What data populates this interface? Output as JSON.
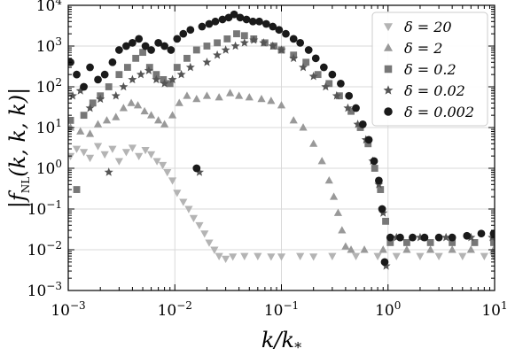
{
  "chart_data": {
    "type": "scatter",
    "xscale": "log",
    "yscale": "log",
    "xlim": [
      0.001,
      10
    ],
    "ylim": [
      0.001,
      10000
    ],
    "xlabel": "k/k*",
    "ylabel": "|f_NL(k, k, k)|",
    "grid": true,
    "legend_position": "top-right",
    "x_ticks": [
      0.001,
      0.01,
      0.1,
      1,
      10
    ],
    "x_tick_labels": [
      "10^-3",
      "10^-2",
      "10^-1",
      "10^0",
      "10^1"
    ],
    "y_ticks": [
      0.001,
      0.01,
      0.1,
      1,
      10,
      100,
      1000,
      10000
    ],
    "y_tick_labels": [
      "10^-3",
      "10^-2",
      "10^-1",
      "10^0",
      "10^1",
      "10^2",
      "10^3",
      "10^4"
    ],
    "series": [
      {
        "name": "δ = 20",
        "marker": "triangle-down",
        "color": "#b4b4b4",
        "points": [
          [
            0.00105,
            2.0
          ],
          [
            0.0012,
            3.0
          ],
          [
            0.0014,
            2.5
          ],
          [
            0.0016,
            1.8
          ],
          [
            0.0019,
            3.5
          ],
          [
            0.0022,
            2.2
          ],
          [
            0.0026,
            3.0
          ],
          [
            0.003,
            1.5
          ],
          [
            0.0035,
            2.5
          ],
          [
            0.004,
            3.2
          ],
          [
            0.0046,
            2.0
          ],
          [
            0.0053,
            2.8
          ],
          [
            0.006,
            2.2
          ],
          [
            0.0068,
            1.5
          ],
          [
            0.0077,
            1.2
          ],
          [
            0.0085,
            0.8
          ],
          [
            0.0095,
            0.5
          ],
          [
            0.0105,
            0.25
          ],
          [
            0.012,
            0.15
          ],
          [
            0.0135,
            0.1
          ],
          [
            0.015,
            0.06
          ],
          [
            0.017,
            0.04
          ],
          [
            0.019,
            0.025
          ],
          [
            0.021,
            0.015
          ],
          [
            0.0235,
            0.01
          ],
          [
            0.026,
            0.007
          ],
          [
            0.03,
            0.006
          ],
          [
            0.035,
            0.0068
          ],
          [
            0.045,
            0.007
          ],
          [
            0.06,
            0.007
          ],
          [
            0.08,
            0.0068
          ],
          [
            0.1,
            0.0068
          ],
          [
            0.15,
            0.007
          ],
          [
            0.2,
            0.0068
          ],
          [
            0.3,
            0.007
          ],
          [
            0.5,
            0.007
          ],
          [
            0.8,
            0.007
          ],
          [
            1.2,
            0.007
          ],
          [
            2.0,
            0.007
          ],
          [
            3.0,
            0.007
          ],
          [
            5.0,
            0.007
          ],
          [
            8.0,
            0.007
          ],
          [
            9.8,
            0.007
          ]
        ]
      },
      {
        "name": "δ = 2",
        "marker": "triangle-up",
        "color": "#999999",
        "points": [
          [
            0.00105,
            10.0
          ],
          [
            0.0013,
            8.0
          ],
          [
            0.0016,
            7.0
          ],
          [
            0.0019,
            12.0
          ],
          [
            0.0023,
            15.0
          ],
          [
            0.0028,
            18.0
          ],
          [
            0.0033,
            30.0
          ],
          [
            0.0039,
            40.0
          ],
          [
            0.0045,
            35.0
          ],
          [
            0.0052,
            25.0
          ],
          [
            0.006,
            20.0
          ],
          [
            0.007,
            15.0
          ],
          [
            0.008,
            12.0
          ],
          [
            0.0095,
            20.0
          ],
          [
            0.011,
            40.0
          ],
          [
            0.013,
            60.0
          ],
          [
            0.016,
            50.0
          ],
          [
            0.02,
            60.0
          ],
          [
            0.026,
            55.0
          ],
          [
            0.033,
            70.0
          ],
          [
            0.04,
            60.0
          ],
          [
            0.05,
            55.0
          ],
          [
            0.065,
            50.0
          ],
          [
            0.08,
            45.0
          ],
          [
            0.1,
            35.0
          ],
          [
            0.13,
            15.0
          ],
          [
            0.16,
            10.0
          ],
          [
            0.2,
            4.0
          ],
          [
            0.24,
            1.5
          ],
          [
            0.28,
            0.5
          ],
          [
            0.31,
            0.2
          ],
          [
            0.34,
            0.08
          ],
          [
            0.37,
            0.03
          ],
          [
            0.4,
            0.012
          ],
          [
            0.45,
            0.01
          ],
          [
            0.6,
            0.01
          ],
          [
            0.9,
            0.01
          ],
          [
            1.5,
            0.01
          ],
          [
            2.5,
            0.01
          ],
          [
            4.0,
            0.01
          ],
          [
            6.0,
            0.01
          ],
          [
            9.8,
            0.01
          ]
        ]
      },
      {
        "name": "δ = 0.2",
        "marker": "square",
        "color": "#777777",
        "points": [
          [
            0.00105,
            15.0
          ],
          [
            0.0012,
            0.3
          ],
          [
            0.0014,
            20.0
          ],
          [
            0.0017,
            40.0
          ],
          [
            0.002,
            60.0
          ],
          [
            0.0024,
            100.0
          ],
          [
            0.003,
            200.0
          ],
          [
            0.0036,
            300.0
          ],
          [
            0.0043,
            500.0
          ],
          [
            0.005,
            700.0
          ],
          [
            0.0058,
            300.0
          ],
          [
            0.0067,
            200.0
          ],
          [
            0.0078,
            150.0
          ],
          [
            0.009,
            120.0
          ],
          [
            0.0105,
            300.0
          ],
          [
            0.013,
            500.0
          ],
          [
            0.016,
            800.0
          ],
          [
            0.02,
            1000.0
          ],
          [
            0.025,
            1200.0
          ],
          [
            0.031,
            1500.0
          ],
          [
            0.038,
            2000.0
          ],
          [
            0.045,
            1800.0
          ],
          [
            0.055,
            1500.0
          ],
          [
            0.07,
            1200.0
          ],
          [
            0.085,
            1000.0
          ],
          [
            0.1,
            800.0
          ],
          [
            0.13,
            600.0
          ],
          [
            0.17,
            400.0
          ],
          [
            0.22,
            200.0
          ],
          [
            0.28,
            120.0
          ],
          [
            0.35,
            60.0
          ],
          [
            0.45,
            25.0
          ],
          [
            0.55,
            10.0
          ],
          [
            0.65,
            4.0
          ],
          [
            0.75,
            1.0
          ],
          [
            0.85,
            0.3
          ],
          [
            0.95,
            0.05
          ],
          [
            1.05,
            0.015
          ],
          [
            1.5,
            0.015
          ],
          [
            2.5,
            0.015
          ],
          [
            4.0,
            0.015
          ],
          [
            6.5,
            0.015
          ],
          [
            9.8,
            0.015
          ]
        ]
      },
      {
        "name": "δ = 0.02",
        "marker": "star",
        "color": "#555555",
        "points": [
          [
            0.0011,
            60.0
          ],
          [
            0.0013,
            80.0
          ],
          [
            0.0016,
            30.0
          ],
          [
            0.002,
            50.0
          ],
          [
            0.0024,
            0.8
          ],
          [
            0.0028,
            60.0
          ],
          [
            0.0033,
            100.0
          ],
          [
            0.004,
            150.0
          ],
          [
            0.0048,
            200.0
          ],
          [
            0.0057,
            250.0
          ],
          [
            0.0067,
            150.0
          ],
          [
            0.008,
            120.0
          ],
          [
            0.0095,
            150.0
          ],
          [
            0.0115,
            200.0
          ],
          [
            0.014,
            300.0
          ],
          [
            0.017,
            0.8
          ],
          [
            0.02,
            400.0
          ],
          [
            0.025,
            600.0
          ],
          [
            0.03,
            800.0
          ],
          [
            0.037,
            1000.0
          ],
          [
            0.045,
            1200.0
          ],
          [
            0.055,
            1400.0
          ],
          [
            0.068,
            1200.0
          ],
          [
            0.083,
            1000.0
          ],
          [
            0.1,
            800.0
          ],
          [
            0.13,
            500.0
          ],
          [
            0.16,
            300.0
          ],
          [
            0.2,
            180.0
          ],
          [
            0.26,
            100.0
          ],
          [
            0.33,
            60.0
          ],
          [
            0.42,
            30.0
          ],
          [
            0.52,
            12.0
          ],
          [
            0.62,
            5.0
          ],
          [
            0.72,
            1.5
          ],
          [
            0.82,
            0.4
          ],
          [
            0.9,
            0.08
          ],
          [
            0.96,
            0.004
          ],
          [
            1.2,
            0.02
          ],
          [
            2.0,
            0.02
          ],
          [
            3.5,
            0.02
          ],
          [
            6.0,
            0.02
          ],
          [
            9.5,
            0.02
          ]
        ]
      },
      {
        "name": "δ = 0.002",
        "marker": "circle",
        "color": "#1a1a1a",
        "points": [
          [
            0.00105,
            400.0
          ],
          [
            0.0012,
            200.0
          ],
          [
            0.0014,
            100.0
          ],
          [
            0.0016,
            300.0
          ],
          [
            0.0019,
            150.0
          ],
          [
            0.0022,
            200.0
          ],
          [
            0.0026,
            400.0
          ],
          [
            0.003,
            800.0
          ],
          [
            0.0035,
            1000.0
          ],
          [
            0.004,
            1200.0
          ],
          [
            0.0046,
            1500.0
          ],
          [
            0.0053,
            1000.0
          ],
          [
            0.006,
            800.0
          ],
          [
            0.007,
            1200.0
          ],
          [
            0.008,
            1000.0
          ],
          [
            0.0092,
            800.0
          ],
          [
            0.0105,
            1500.0
          ],
          [
            0.012,
            2000.0
          ],
          [
            0.014,
            2500.0
          ],
          [
            0.016,
            1.0
          ],
          [
            0.018,
            3000.0
          ],
          [
            0.021,
            3500.0
          ],
          [
            0.024,
            4000.0
          ],
          [
            0.028,
            4500.0
          ],
          [
            0.032,
            5000.0
          ],
          [
            0.036,
            6000.0
          ],
          [
            0.041,
            5000.0
          ],
          [
            0.047,
            4500.0
          ],
          [
            0.054,
            4000.0
          ],
          [
            0.062,
            4000.0
          ],
          [
            0.072,
            3500.0
          ],
          [
            0.083,
            3000.0
          ],
          [
            0.095,
            2500.0
          ],
          [
            0.11,
            2000.0
          ],
          [
            0.13,
            1500.0
          ],
          [
            0.15,
            1200.0
          ],
          [
            0.18,
            800.0
          ],
          [
            0.21,
            500.0
          ],
          [
            0.25,
            300.0
          ],
          [
            0.3,
            200.0
          ],
          [
            0.36,
            120.0
          ],
          [
            0.43,
            60.0
          ],
          [
            0.5,
            30.0
          ],
          [
            0.58,
            12.0
          ],
          [
            0.66,
            5.0
          ],
          [
            0.74,
            1.5
          ],
          [
            0.82,
            0.5
          ],
          [
            0.88,
            0.1
          ],
          [
            0.93,
            0.005
          ],
          [
            1.05,
            0.02
          ],
          [
            1.3,
            0.02
          ],
          [
            1.7,
            0.02
          ],
          [
            2.2,
            0.02
          ],
          [
            3.0,
            0.02
          ],
          [
            4.0,
            0.02
          ],
          [
            5.5,
            0.022
          ],
          [
            7.5,
            0.025
          ],
          [
            9.8,
            0.025
          ]
        ]
      }
    ]
  }
}
